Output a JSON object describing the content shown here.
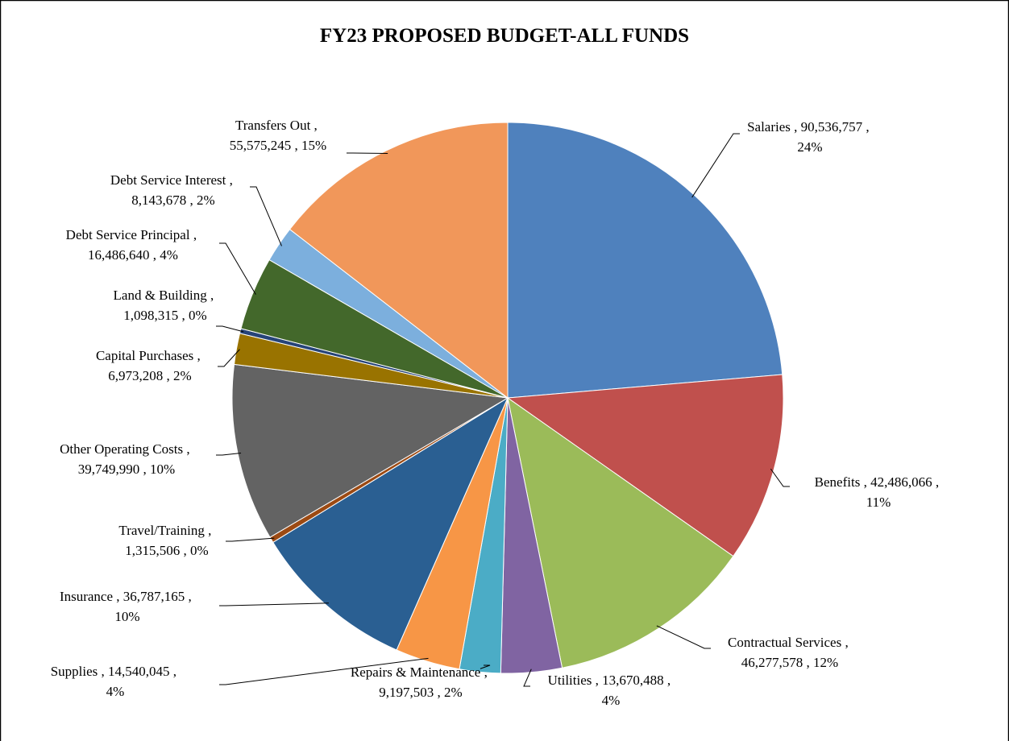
{
  "chart_data": {
    "type": "pie",
    "title": "FY23 PROPOSED BUDGET-ALL FUNDS",
    "label_separator": " , ",
    "categories": [
      "Salaries",
      "Benefits",
      "Contractual Services",
      "Utilities",
      "Repairs & Maintenance",
      "Supplies",
      "Insurance",
      "Travel/Training",
      "Other Operating Costs",
      "Capital Purchases",
      "Land & Building",
      "Debt Service Principal",
      "Debt Service Interest",
      "Transfers Out"
    ],
    "values": [
      90536757,
      42486066,
      46277578,
      13670488,
      9197503,
      14540045,
      36787165,
      1315506,
      39749990,
      6973208,
      1098315,
      16486640,
      8143678,
      55575245
    ],
    "value_labels": [
      "90,536,757",
      "42,486,066",
      "46,277,578",
      "13,670,488",
      "9,197,503",
      "14,540,045",
      "36,787,165",
      "1,315,506",
      "39,749,990",
      "6,973,208",
      "1,098,315",
      "16,486,640",
      "8,143,678",
      "55,575,245"
    ],
    "percent_labels": [
      "24%",
      "11%",
      "12%",
      "4%",
      "2%",
      "4%",
      "10%",
      "0%",
      "10%",
      "2%",
      "0%",
      "4%",
      "2%",
      "15%"
    ],
    "colors": [
      "#4f81bd",
      "#c0504d",
      "#9bbb59",
      "#8064a2",
      "#4bacc6",
      "#f79646",
      "#2a5f92",
      "#9c4a13",
      "#636363",
      "#997300",
      "#264478",
      "#43682b",
      "#7cafdd",
      "#f1975a"
    ]
  }
}
